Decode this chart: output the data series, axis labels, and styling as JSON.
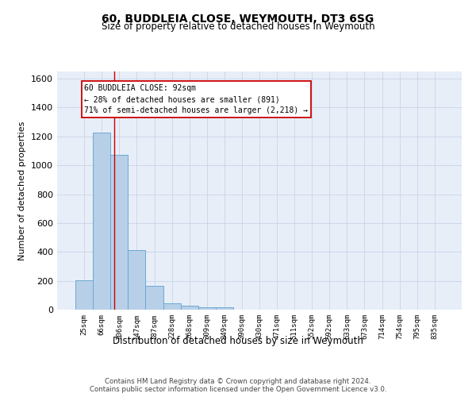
{
  "title": "60, BUDDLEIA CLOSE, WEYMOUTH, DT3 6SG",
  "subtitle": "Size of property relative to detached houses in Weymouth",
  "xlabel": "Distribution of detached houses by size in Weymouth",
  "ylabel": "Number of detached properties",
  "categories": [
    "25sqm",
    "66sqm",
    "106sqm",
    "147sqm",
    "187sqm",
    "228sqm",
    "268sqm",
    "309sqm",
    "349sqm",
    "390sqm",
    "430sqm",
    "471sqm",
    "511sqm",
    "552sqm",
    "592sqm",
    "633sqm",
    "673sqm",
    "714sqm",
    "754sqm",
    "795sqm",
    "835sqm"
  ],
  "values": [
    205,
    1225,
    1075,
    410,
    165,
    45,
    27,
    17,
    14,
    0,
    0,
    0,
    0,
    0,
    0,
    0,
    0,
    0,
    0,
    0,
    0
  ],
  "bar_color": "#b8cfe8",
  "bar_edge_color": "#6aaad4",
  "ylim": [
    0,
    1650
  ],
  "yticks": [
    0,
    200,
    400,
    600,
    800,
    1000,
    1200,
    1400,
    1600
  ],
  "property_line_x": 1.72,
  "annotation_line1": "60 BUDDLEIA CLOSE: 92sqm",
  "annotation_line2": "← 28% of detached houses are smaller (891)",
  "annotation_line3": "71% of semi-detached houses are larger (2,218) →",
  "annotation_box_color": "#cc0000",
  "grid_color": "#c8d4e8",
  "background_color": "#e8eef8",
  "footer_line1": "Contains HM Land Registry data © Crown copyright and database right 2024.",
  "footer_line2": "Contains public sector information licensed under the Open Government Licence v3.0."
}
